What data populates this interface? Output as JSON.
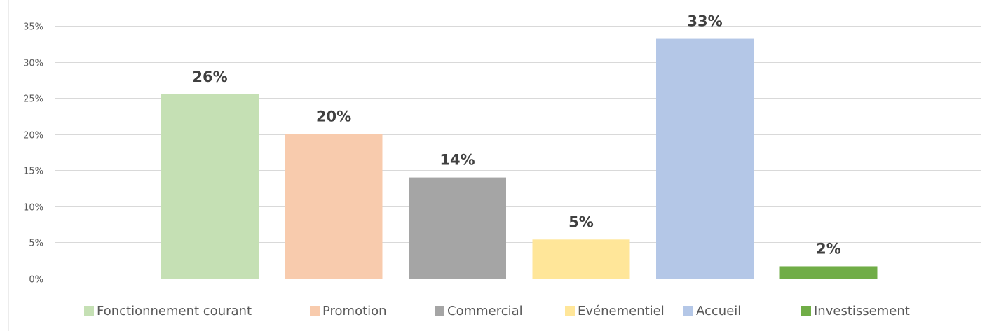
{
  "chart_data": {
    "type": "bar",
    "title": "",
    "xlabel": "",
    "ylabel": "",
    "ylim": [
      0,
      35
    ],
    "yticks": [
      0,
      5,
      10,
      15,
      20,
      25,
      30,
      35
    ],
    "ytick_suffix": "%",
    "grid": true,
    "legend_position": "bottom",
    "data_labels": true,
    "series": [
      {
        "name": "Fonctionnement courant",
        "value": 25.5,
        "label": "26%",
        "color": "#c5e0b4"
      },
      {
        "name": "Promotion",
        "value": 20.0,
        "label": "20%",
        "color": "#f8cbad"
      },
      {
        "name": "Commercial",
        "value": 14.0,
        "label": "14%",
        "color": "#a5a5a5"
      },
      {
        "name": "Evénementiel",
        "value": 5.4,
        "label": "5%",
        "color": "#ffe699"
      },
      {
        "name": "Accueil",
        "value": 33.2,
        "label": "33%",
        "color": "#b4c7e7"
      },
      {
        "name": "Investissement",
        "value": 1.7,
        "label": "2%",
        "color": "#70ad47"
      }
    ]
  }
}
